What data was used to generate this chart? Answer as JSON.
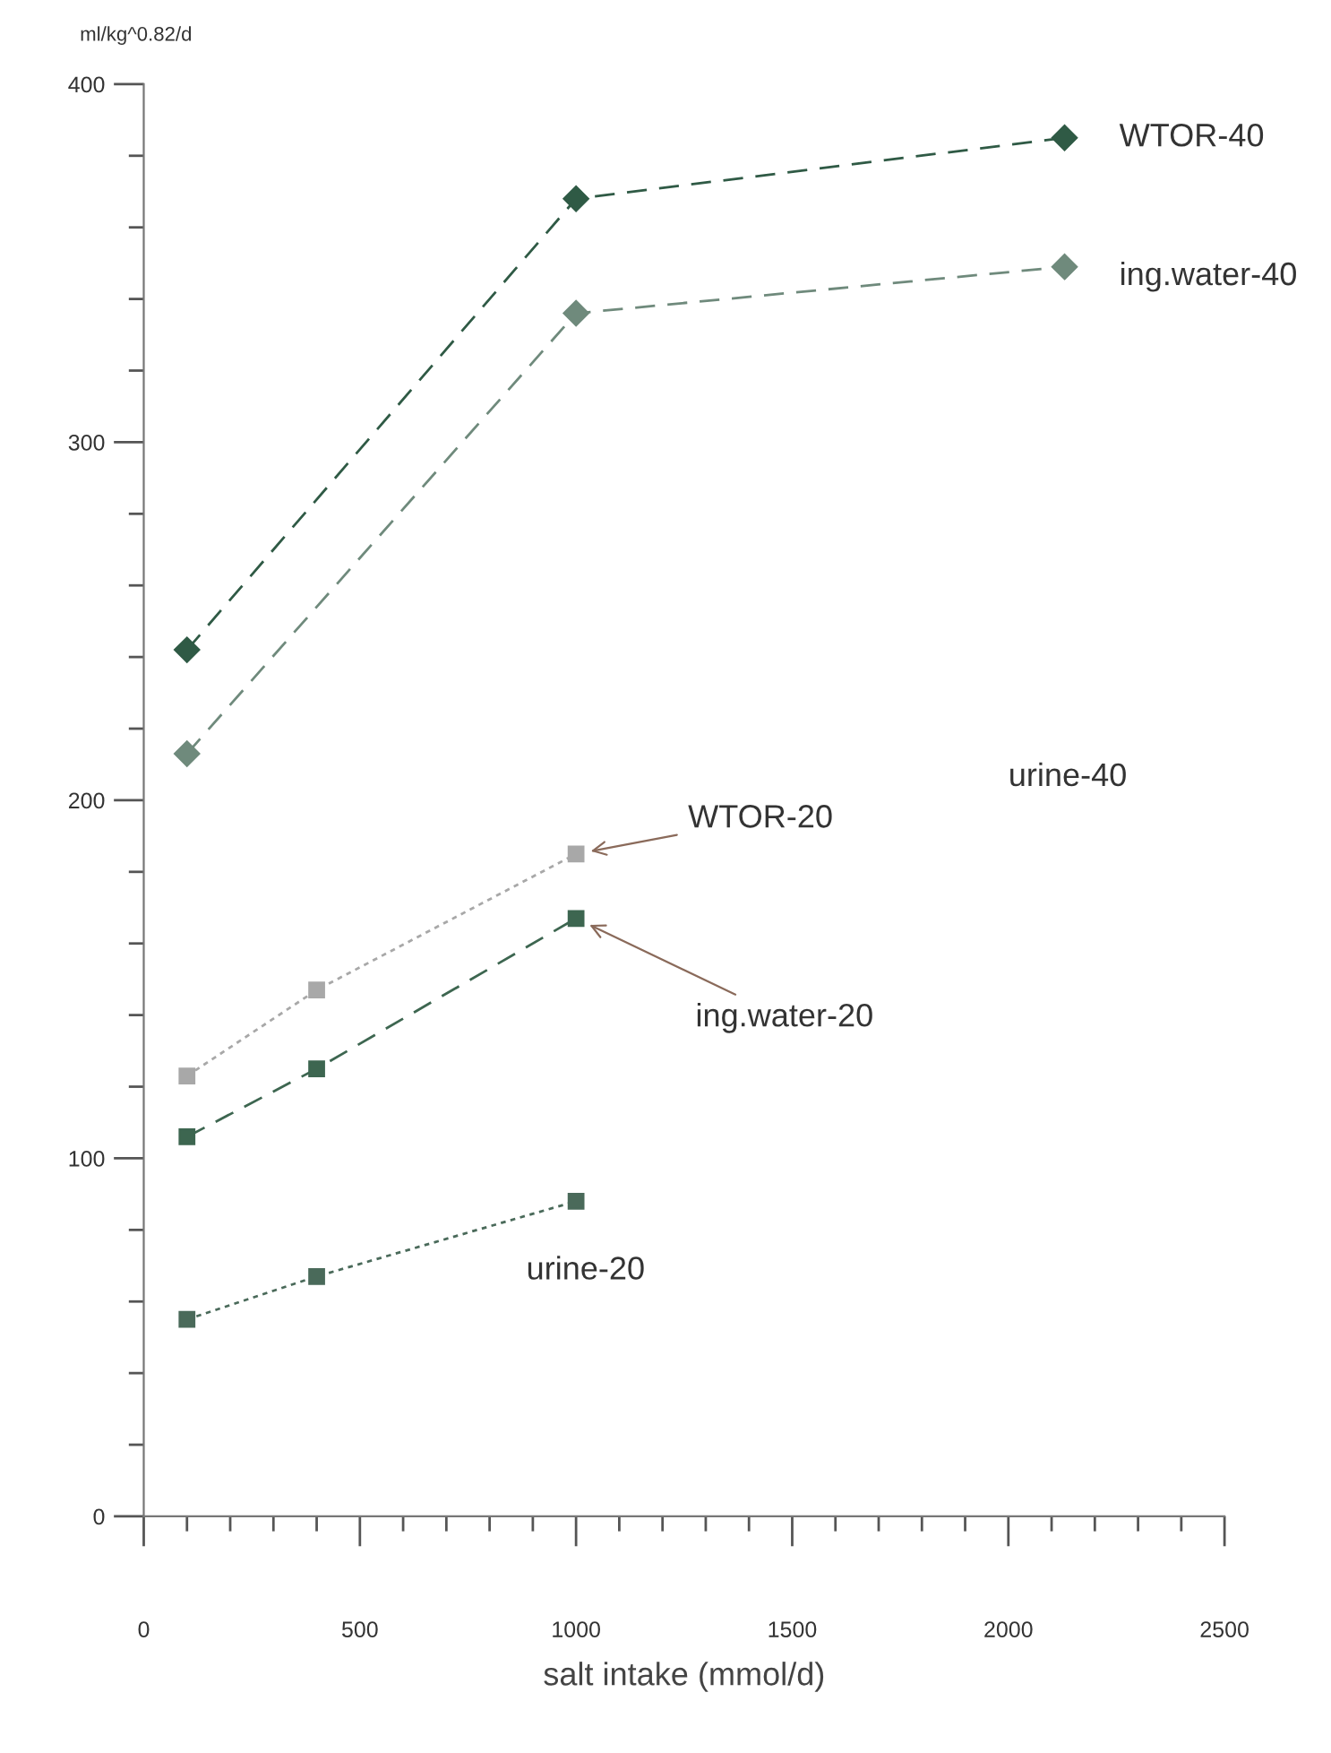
{
  "chart_data": {
    "type": "line",
    "xlabel": "salt intake (mmol/d)",
    "ylabel": "ml/kg^0.82/d",
    "xlim": [
      0,
      2500
    ],
    "ylim": [
      0,
      400
    ],
    "xticks": [
      0,
      {
        "value": 100,
        "label": null
      },
      {
        "value": 200,
        "label": null
      },
      {
        "value": 300,
        "label": null
      },
      {
        "value": 400,
        "label": null
      },
      500,
      {
        "value": 600,
        "label": null
      },
      {
        "value": 700,
        "label": null
      },
      {
        "value": 800,
        "label": null
      },
      {
        "value": 900,
        "label": null
      },
      1000,
      {
        "value": 1100,
        "label": null
      },
      {
        "value": 1200,
        "label": null
      },
      {
        "value": 1300,
        "label": null
      },
      {
        "value": 1400,
        "label": null
      },
      1500,
      {
        "value": 1600,
        "label": null
      },
      {
        "value": 1700,
        "label": null
      },
      {
        "value": 1800,
        "label": null
      },
      {
        "value": 1900,
        "label": null
      },
      2000,
      {
        "value": 2100,
        "label": null
      },
      {
        "value": 2200,
        "label": null
      },
      {
        "value": 2300,
        "label": null
      },
      {
        "value": 2400,
        "label": null
      },
      2500
    ],
    "yticks": [
      0,
      {
        "value": 20,
        "label": null
      },
      {
        "value": 40,
        "label": null
      },
      {
        "value": 60,
        "label": null
      },
      {
        "value": 80,
        "label": null
      },
      100,
      {
        "value": 120,
        "label": null
      },
      {
        "value": 140,
        "label": null
      },
      {
        "value": 160,
        "label": null
      },
      {
        "value": 180,
        "label": null
      },
      200,
      {
        "value": 220,
        "label": null
      },
      {
        "value": 240,
        "label": null
      },
      {
        "value": 260,
        "label": null
      },
      {
        "value": 280,
        "label": null
      },
      300,
      {
        "value": 320,
        "label": null
      },
      {
        "value": 340,
        "label": null
      },
      {
        "value": 360,
        "label": null
      },
      {
        "value": 380,
        "label": null
      },
      400
    ],
    "grid": false,
    "legend": false,
    "series": [
      {
        "name": "WTOR-40",
        "color": "#2f5a45",
        "marker": "diamond",
        "line_style": "dashed",
        "x": [
          100,
          1000,
          2130
        ],
        "values": [
          242,
          368,
          385
        ]
      },
      {
        "name": "ing.water-40",
        "color": "#6f8a7c",
        "marker": "diamond",
        "line_style": "dashed",
        "x": [
          100,
          1000,
          2130
        ],
        "values": [
          213,
          336,
          349
        ]
      },
      {
        "name": "WTOR-20",
        "color": "#a8a8a8",
        "marker": "square",
        "line_style": "dotted",
        "x": [
          100,
          400,
          1000
        ],
        "values": [
          123,
          147,
          185
        ]
      },
      {
        "name": "ing.water-20",
        "color": "#3d6650",
        "marker": "square",
        "line_style": "dashed",
        "x": [
          100,
          400,
          1000
        ],
        "values": [
          106,
          125,
          167
        ]
      },
      {
        "name": "urine-20",
        "color": "#4a6a5a",
        "marker": "square",
        "line_style": "dotted",
        "x": [
          100,
          400,
          1000
        ],
        "values": [
          55,
          67,
          88
        ]
      }
    ],
    "annotations": [
      "urine-40"
    ]
  }
}
